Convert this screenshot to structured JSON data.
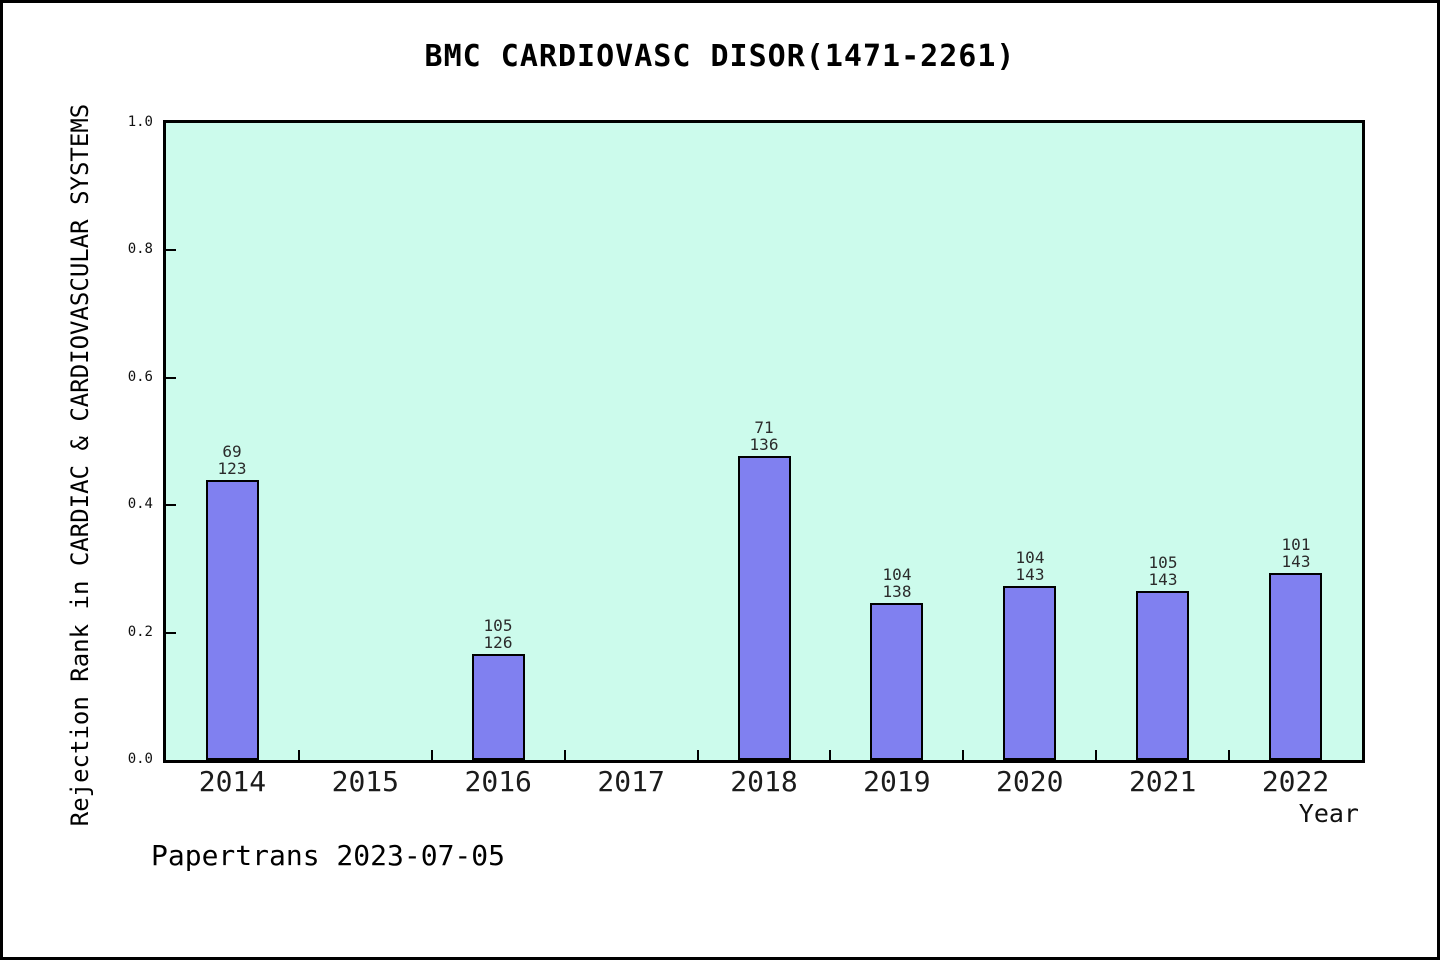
{
  "page": {
    "footer": "Papertrans 2023-07-05"
  },
  "chart_data": {
    "type": "bar",
    "title": "BMC CARDIOVASC DISOR(1471-2261)",
    "xlabel": "Year",
    "ylabel": "Rejection Rank in CARDIAC & CARDIOVASCULAR SYSTEMS",
    "categories": [
      "2014",
      "2015",
      "2016",
      "2017",
      "2018",
      "2019",
      "2020",
      "2021",
      "2022"
    ],
    "bars": [
      {
        "year": "2014",
        "rank": 69,
        "total": 123,
        "value": 0.439
      },
      {
        "year": "2015",
        "rank": null,
        "total": null,
        "value": 0
      },
      {
        "year": "2016",
        "rank": 105,
        "total": 126,
        "value": 0.167
      },
      {
        "year": "2017",
        "rank": null,
        "total": null,
        "value": 0
      },
      {
        "year": "2018",
        "rank": 71,
        "total": 136,
        "value": 0.478
      },
      {
        "year": "2019",
        "rank": 104,
        "total": 138,
        "value": 0.246
      },
      {
        "year": "2020",
        "rank": 104,
        "total": 143,
        "value": 0.273
      },
      {
        "year": "2021",
        "rank": 105,
        "total": 143,
        "value": 0.266
      },
      {
        "year": "2022",
        "rank": 101,
        "total": 143,
        "value": 0.294
      }
    ],
    "yticks": [
      "0.0",
      "0.2",
      "0.4",
      "0.6",
      "0.8",
      "1.0"
    ],
    "ylim": [
      0,
      1
    ],
    "grid": false,
    "legend": "none",
    "colors": {
      "bar_fill": "#8080f0",
      "bar_border": "#000000",
      "plot_bg": "#ccfbec",
      "text": "#000000"
    }
  }
}
